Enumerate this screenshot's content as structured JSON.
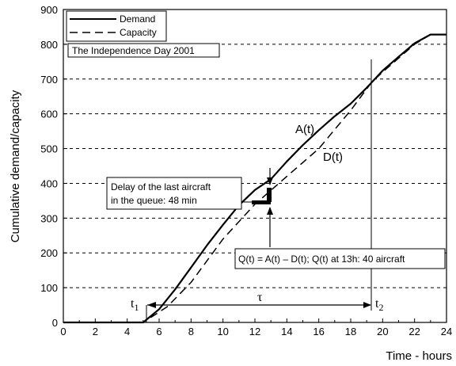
{
  "chart_data": {
    "type": "line",
    "xlabel": "Time - hours",
    "ylabel": "Cumulative  demand/capacity",
    "xlim": [
      0,
      24
    ],
    "ylim": [
      0,
      900
    ],
    "x_ticks": [
      "0",
      "2",
      "4",
      "6",
      "8",
      "10",
      "12",
      "14",
      "16",
      "18",
      "20",
      "22",
      "24"
    ],
    "y_ticks": [
      "0",
      "100",
      "200",
      "300",
      "400",
      "500",
      "600",
      "700",
      "800",
      "900"
    ],
    "grid": "horizontal dashed",
    "legend_position": "top-left",
    "series": [
      {
        "name": "Demand",
        "style": "solid",
        "x": [
          0,
          5,
          6,
          7,
          8,
          9,
          10,
          11,
          12,
          13,
          14,
          15,
          16,
          17,
          18,
          19,
          20,
          21,
          22,
          23,
          24
        ],
        "y": [
          0,
          0,
          38,
          95,
          158,
          222,
          281,
          337,
          381,
          412,
          463,
          510,
          553,
          593,
          629,
          675,
          724,
          764,
          803,
          828,
          828
        ]
      },
      {
        "name": "Capacity",
        "style": "dashed",
        "x": [
          0,
          5,
          6.5,
          8,
          10,
          12,
          14,
          16,
          18,
          19.3,
          20,
          22,
          23,
          24
        ],
        "y": [
          0,
          0,
          45,
          115,
          240,
          340,
          420,
          500,
          610,
          690,
          720,
          800,
          828,
          828
        ]
      }
    ],
    "annotations": {
      "box_title": "The Independence Day 2001",
      "delay_line1": "Delay of the last aircraft",
      "delay_line2": "in the queue: 48 min",
      "queue_text": "Q(t) = A(t) – D(t); Q(t) at 13h: 40 aircraft",
      "a_label": "A(t)",
      "d_label": "D(t)",
      "t1_label": "t",
      "t1_sub": "1",
      "t2_label": "t",
      "t2_sub": "2",
      "tau_label": "τ"
    }
  }
}
